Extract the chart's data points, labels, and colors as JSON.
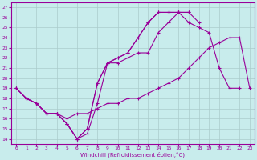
{
  "xlabel": "Windchill (Refroidissement éolien,°C)",
  "bg_color": "#c8ecec",
  "line_color": "#990099",
  "grid_color": "#aacccc",
  "xlim": [
    -0.5,
    23.5
  ],
  "ylim": [
    13.5,
    27.5
  ],
  "xticks": [
    0,
    1,
    2,
    3,
    4,
    5,
    6,
    7,
    8,
    9,
    10,
    11,
    12,
    13,
    14,
    15,
    16,
    17,
    18,
    19,
    20,
    21,
    22,
    23
  ],
  "yticks": [
    14,
    15,
    16,
    17,
    18,
    19,
    20,
    21,
    22,
    23,
    24,
    25,
    26,
    27
  ],
  "line1_x": [
    0,
    1,
    2,
    3,
    4,
    5,
    6,
    7,
    8,
    9,
    10,
    11,
    12,
    13,
    14,
    15,
    16,
    17
  ],
  "line1_y": [
    19,
    18,
    17.5,
    16.5,
    16.5,
    15.5,
    14,
    15,
    19.5,
    21.5,
    22,
    22.5,
    24,
    25.5,
    26.5,
    26.5,
    26.5,
    26.5
  ],
  "line2_x": [
    0,
    1,
    2,
    3,
    4,
    5,
    6,
    7,
    8,
    9,
    10,
    11,
    12,
    13,
    14,
    15,
    16,
    17,
    18,
    19,
    20,
    21,
    22
  ],
  "line2_y": [
    19,
    18,
    17.5,
    16.5,
    16.5,
    15.5,
    14,
    15,
    19.5,
    21.5,
    22,
    22.5,
    24,
    25.5,
    26.5,
    26.5,
    26.5,
    25.5,
    25,
    24.5,
    21,
    19,
    19
  ],
  "line3_x": [
    0,
    1,
    2,
    3,
    4,
    5,
    6,
    7,
    8,
    9,
    10,
    11,
    12,
    13,
    14,
    15,
    16,
    17,
    18,
    19,
    20,
    21,
    22,
    23
  ],
  "line3_y": [
    19,
    18,
    17.5,
    16.5,
    16.5,
    15.5,
    14,
    14.5,
    17.5,
    21.5,
    21.5,
    22,
    22.5,
    22.5,
    24.5,
    25.5,
    26.5,
    26.5,
    25.5,
    null,
    null,
    null,
    null,
    null
  ],
  "line4_x": [
    1,
    2,
    3,
    4,
    5,
    6,
    7,
    8,
    9,
    10,
    11,
    12,
    13,
    14,
    15,
    16,
    17,
    18,
    19,
    20,
    21,
    22,
    23
  ],
  "line4_y": [
    18,
    17.5,
    16.5,
    16.5,
    16,
    16.5,
    16.5,
    17,
    17.5,
    17.5,
    18,
    18,
    18.5,
    19,
    19.5,
    20,
    21,
    22,
    23,
    23.5,
    24,
    24,
    19
  ]
}
